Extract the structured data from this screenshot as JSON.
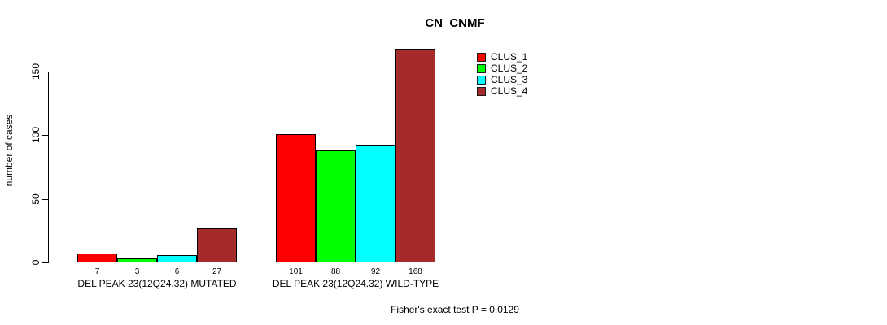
{
  "title": "CN_CNMF",
  "y_axis": {
    "label": "number of cases",
    "ticks": [
      0,
      50,
      100,
      150
    ]
  },
  "footer_text": "Fisher's exact test P = 0.0129",
  "legend": {
    "items": [
      {
        "label": "CLUS_1",
        "color": "#FF0000"
      },
      {
        "label": "CLUS_2",
        "color": "#00FF00"
      },
      {
        "label": "CLUS_3",
        "color": "#00FFFF"
      },
      {
        "label": "CLUS_4",
        "color": "#A52A2A"
      }
    ]
  },
  "chart_data": {
    "type": "bar",
    "title": "CN_CNMF",
    "xlabel": "",
    "ylabel": "number of cases",
    "ylim": [
      0,
      170
    ],
    "yticks": [
      0,
      50,
      100,
      150
    ],
    "grid": false,
    "legend_position": "top-right",
    "series_names": [
      "CLUS_1",
      "CLUS_2",
      "CLUS_3",
      "CLUS_4"
    ],
    "series_colors": [
      "#FF0000",
      "#00FF00",
      "#00FFFF",
      "#A52A2A"
    ],
    "groups": [
      {
        "label": "DEL PEAK 23(12Q24.32) MUTATED",
        "values": [
          7,
          3,
          6,
          27
        ]
      },
      {
        "label": "DEL PEAK 23(12Q24.32) WILD-TYPE",
        "values": [
          101,
          88,
          92,
          168
        ]
      }
    ],
    "bar_value_labels": [
      [
        7,
        3,
        6,
        27
      ],
      [
        101,
        88,
        92,
        168
      ]
    ],
    "annotation": "Fisher's exact test P = 0.0129"
  }
}
